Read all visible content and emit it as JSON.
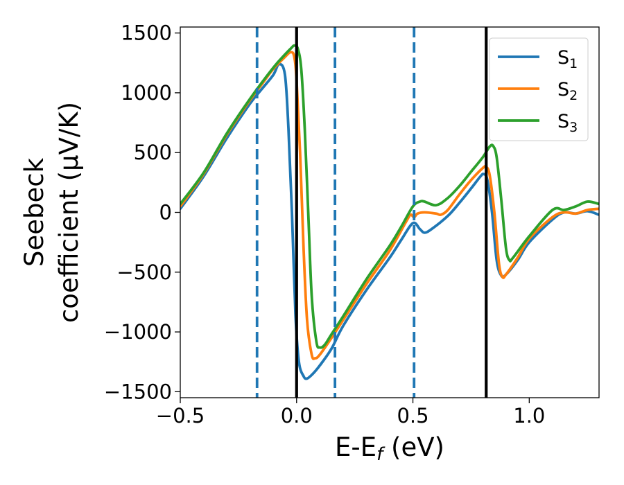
{
  "chart_data": {
    "type": "line",
    "xlabel": "E-E_f (eV)",
    "ylabel_lines": [
      "Seebeck",
      "coefficient  (μV/K)"
    ],
    "xlim": [
      -0.5,
      1.3
    ],
    "ylim": [
      -1550,
      1550
    ],
    "xticks": [
      {
        "value": -0.5,
        "label": "−0.5"
      },
      {
        "value": 0.0,
        "label": "0.0"
      },
      {
        "value": 0.5,
        "label": "0.5"
      },
      {
        "value": 1.0,
        "label": "1.0"
      }
    ],
    "yticks": [
      {
        "value": 1500,
        "label": "1500"
      },
      {
        "value": 1000,
        "label": "1000"
      },
      {
        "value": 500,
        "label": "500"
      },
      {
        "value": 0,
        "label": "0"
      },
      {
        "value": -500,
        "label": "−500"
      },
      {
        "value": -1000,
        "label": "−1000"
      },
      {
        "value": -1500,
        "label": "−1500"
      }
    ],
    "grid": false,
    "legend_position": "top-right",
    "vertical_lines": [
      {
        "x": -0.17,
        "style": "dashed",
        "color": "#1f77b4"
      },
      {
        "x": 0.0,
        "style": "solid",
        "color": "#000000"
      },
      {
        "x": 0.165,
        "style": "dashed",
        "color": "#1f77b4"
      },
      {
        "x": 0.505,
        "style": "dashed",
        "color": "#1f77b4"
      },
      {
        "x": 0.815,
        "style": "solid",
        "color": "#000000"
      }
    ],
    "series": [
      {
        "name": "S",
        "subscript": "1",
        "color": "#1f77b4",
        "points": [
          [
            -0.5,
            30
          ],
          [
            -0.4,
            300
          ],
          [
            -0.3,
            620
          ],
          [
            -0.2,
            910
          ],
          [
            -0.15,
            1030
          ],
          [
            -0.1,
            1150
          ],
          [
            -0.075,
            1240
          ],
          [
            -0.05,
            1150
          ],
          [
            -0.035,
            700
          ],
          [
            -0.02,
            0
          ],
          [
            -0.005,
            -850
          ],
          [
            0.01,
            -1250
          ],
          [
            0.03,
            -1370
          ],
          [
            0.045,
            -1390
          ],
          [
            0.07,
            -1350
          ],
          [
            0.1,
            -1280
          ],
          [
            0.15,
            -1140
          ],
          [
            0.2,
            -950
          ],
          [
            0.3,
            -650
          ],
          [
            0.4,
            -380
          ],
          [
            0.45,
            -230
          ],
          [
            0.5,
            -90
          ],
          [
            0.53,
            -140
          ],
          [
            0.55,
            -170
          ],
          [
            0.58,
            -140
          ],
          [
            0.65,
            -30
          ],
          [
            0.7,
            80
          ],
          [
            0.75,
            200
          ],
          [
            0.79,
            300
          ],
          [
            0.805,
            320
          ],
          [
            0.82,
            270
          ],
          [
            0.84,
            0
          ],
          [
            0.86,
            -400
          ],
          [
            0.88,
            -530
          ],
          [
            0.9,
            -520
          ],
          [
            0.95,
            -400
          ],
          [
            1.0,
            -250
          ],
          [
            1.1,
            -60
          ],
          [
            1.15,
            0
          ],
          [
            1.2,
            -10
          ],
          [
            1.25,
            10
          ],
          [
            1.3,
            -20
          ]
        ]
      },
      {
        "name": "S",
        "subscript": "2",
        "color": "#ff7f0e",
        "points": [
          [
            -0.5,
            50
          ],
          [
            -0.4,
            320
          ],
          [
            -0.3,
            650
          ],
          [
            -0.2,
            940
          ],
          [
            -0.15,
            1070
          ],
          [
            -0.1,
            1200
          ],
          [
            -0.05,
            1300
          ],
          [
            -0.025,
            1340
          ],
          [
            -0.01,
            1300
          ],
          [
            0.0,
            1100
          ],
          [
            0.015,
            500
          ],
          [
            0.03,
            -300
          ],
          [
            0.045,
            -900
          ],
          [
            0.065,
            -1190
          ],
          [
            0.08,
            -1220
          ],
          [
            0.1,
            -1190
          ],
          [
            0.15,
            -1050
          ],
          [
            0.2,
            -900
          ],
          [
            0.3,
            -600
          ],
          [
            0.4,
            -320
          ],
          [
            0.47,
            -80
          ],
          [
            0.49,
            -20
          ],
          [
            0.505,
            -40
          ],
          [
            0.52,
            -10
          ],
          [
            0.55,
            0
          ],
          [
            0.6,
            -10
          ],
          [
            0.62,
            -20
          ],
          [
            0.65,
            20
          ],
          [
            0.7,
            150
          ],
          [
            0.75,
            270
          ],
          [
            0.8,
            370
          ],
          [
            0.815,
            380
          ],
          [
            0.83,
            310
          ],
          [
            0.85,
            0
          ],
          [
            0.87,
            -430
          ],
          [
            0.885,
            -540
          ],
          [
            0.9,
            -520
          ],
          [
            0.95,
            -380
          ],
          [
            1.0,
            -220
          ],
          [
            1.1,
            -40
          ],
          [
            1.15,
            0
          ],
          [
            1.2,
            -10
          ],
          [
            1.25,
            20
          ],
          [
            1.3,
            30
          ]
        ]
      },
      {
        "name": "S",
        "subscript": "3",
        "color": "#2ca02c",
        "points": [
          [
            -0.5,
            70
          ],
          [
            -0.4,
            330
          ],
          [
            -0.3,
            660
          ],
          [
            -0.2,
            950
          ],
          [
            -0.1,
            1210
          ],
          [
            -0.05,
            1320
          ],
          [
            -0.02,
            1380
          ],
          [
            -0.01,
            1395
          ],
          [
            0.005,
            1370
          ],
          [
            0.02,
            1200
          ],
          [
            0.035,
            700
          ],
          [
            0.05,
            0
          ],
          [
            0.065,
            -700
          ],
          [
            0.085,
            -1080
          ],
          [
            0.1,
            -1130
          ],
          [
            0.12,
            -1110
          ],
          [
            0.15,
            -1020
          ],
          [
            0.2,
            -870
          ],
          [
            0.3,
            -560
          ],
          [
            0.4,
            -280
          ],
          [
            0.45,
            -120
          ],
          [
            0.5,
            50
          ],
          [
            0.53,
            90
          ],
          [
            0.55,
            90
          ],
          [
            0.6,
            60
          ],
          [
            0.65,
            120
          ],
          [
            0.7,
            220
          ],
          [
            0.75,
            340
          ],
          [
            0.8,
            460
          ],
          [
            0.83,
            550
          ],
          [
            0.845,
            555
          ],
          [
            0.86,
            460
          ],
          [
            0.88,
            100
          ],
          [
            0.9,
            -300
          ],
          [
            0.915,
            -400
          ],
          [
            0.93,
            -380
          ],
          [
            1.0,
            -200
          ],
          [
            1.1,
            20
          ],
          [
            1.15,
            20
          ],
          [
            1.2,
            50
          ],
          [
            1.25,
            90
          ],
          [
            1.3,
            70
          ]
        ]
      }
    ]
  }
}
